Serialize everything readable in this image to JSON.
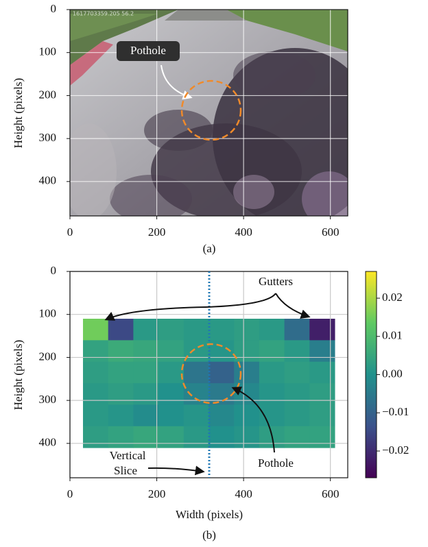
{
  "chart_data": [
    {
      "type": "image",
      "ylabel": "Height (pixels)",
      "caption": "(a)",
      "overlay_text": "1617703359.205 56.2",
      "annotations": {
        "pothole": "Pothole"
      },
      "xlim": [
        0,
        640
      ],
      "ylim": [
        480,
        0
      ],
      "xticks": [
        0,
        200,
        400,
        600
      ],
      "yticks": [
        0,
        100,
        200,
        300,
        400
      ],
      "grid": true
    },
    {
      "type": "heatmap",
      "xlabel": "Width (pixels)",
      "ylabel": "Height (pixels)",
      "caption": "(b)",
      "annotations": {
        "gutters": "Gutters",
        "pothole": "Pothole",
        "slice": [
          "Vertical",
          "Slice"
        ]
      },
      "xlim": [
        0,
        640
      ],
      "ylim": [
        480,
        0
      ],
      "xticks": [
        0,
        200,
        400,
        600
      ],
      "yticks": [
        0,
        100,
        200,
        300,
        400
      ],
      "grid": true,
      "x_edges": [
        30,
        88,
        146,
        204,
        262,
        320,
        378,
        436,
        494,
        552,
        610
      ],
      "y_edges": [
        110,
        160,
        210,
        260,
        310,
        360,
        410
      ],
      "values": [
        [
          0.015,
          -0.015,
          0.002,
          0.003,
          0.002,
          0.002,
          0.003,
          0.002,
          -0.008,
          -0.022
        ],
        [
          0.004,
          0.006,
          0.005,
          0.004,
          0.002,
          0.001,
          0.003,
          0.004,
          0.002,
          -0.004
        ],
        [
          0.003,
          0.004,
          0.004,
          0.002,
          -0.006,
          -0.01,
          -0.004,
          0.002,
          0.003,
          0.002
        ],
        [
          0.002,
          0.003,
          0.002,
          0.0,
          -0.003,
          -0.005,
          -0.002,
          0.001,
          0.002,
          0.003
        ],
        [
          0.002,
          0.001,
          -0.001,
          0.0,
          0.001,
          -0.002,
          0.0,
          0.001,
          0.002,
          0.003
        ],
        [
          0.003,
          0.004,
          0.005,
          0.004,
          0.002,
          0.0,
          0.001,
          0.003,
          0.004,
          0.004
        ]
      ],
      "colormap": "viridis",
      "clim": [
        -0.027,
        0.027
      ],
      "cticks": [
        0.02,
        0.01,
        {
          "value": 0,
          "label": "0.00"
        },
        {
          "value": -0.01,
          "label": "−0.01"
        },
        {
          "value": -0.02,
          "label": "−0.02"
        }
      ]
    }
  ]
}
